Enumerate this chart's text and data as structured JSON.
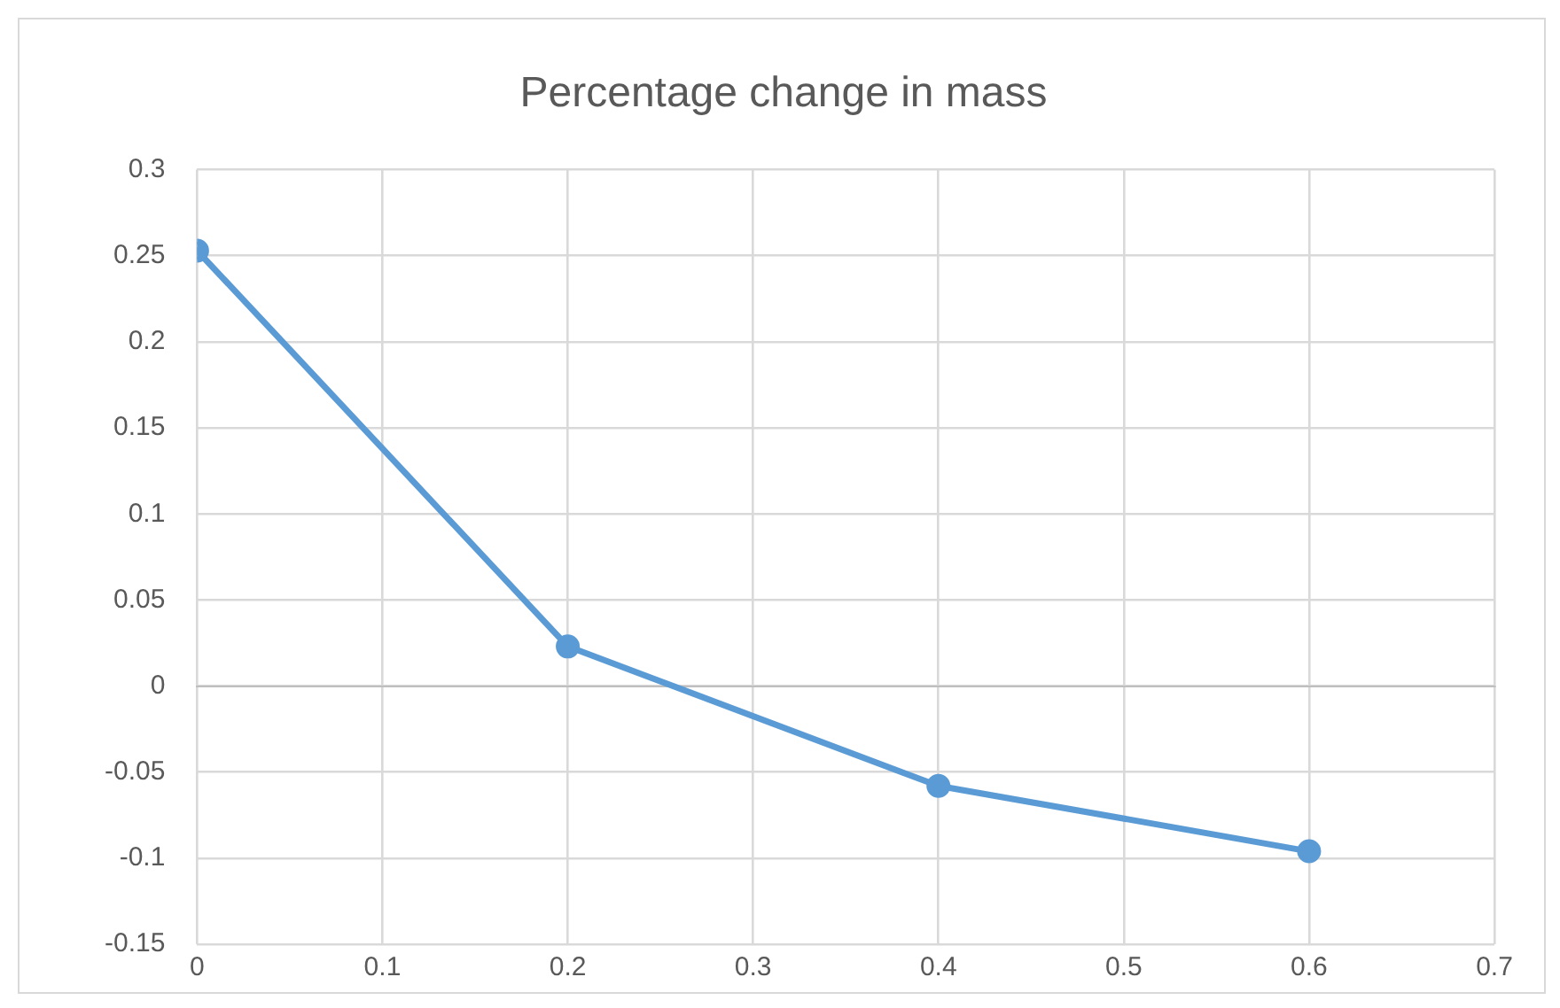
{
  "chart_data": {
    "type": "line",
    "title": "Percentage change in mass",
    "x": [
      0,
      0.2,
      0.4,
      0.6
    ],
    "series": [
      {
        "color": "#5b9bd5",
        "values": [
          0.253,
          0.023,
          -0.058,
          -0.096
        ]
      }
    ],
    "xlim": [
      0,
      0.7
    ],
    "xticks": [
      0,
      0.1,
      0.2,
      0.3,
      0.4,
      0.5,
      0.6,
      0.7
    ],
    "ylim": [
      -0.15,
      0.3
    ],
    "yticks": [
      -0.15,
      -0.1,
      -0.05,
      0,
      0.05,
      0.1,
      0.15,
      0.2,
      0.25,
      0.3
    ],
    "grid": true,
    "marker": "circle",
    "line_style": "solid",
    "legend": false
  }
}
